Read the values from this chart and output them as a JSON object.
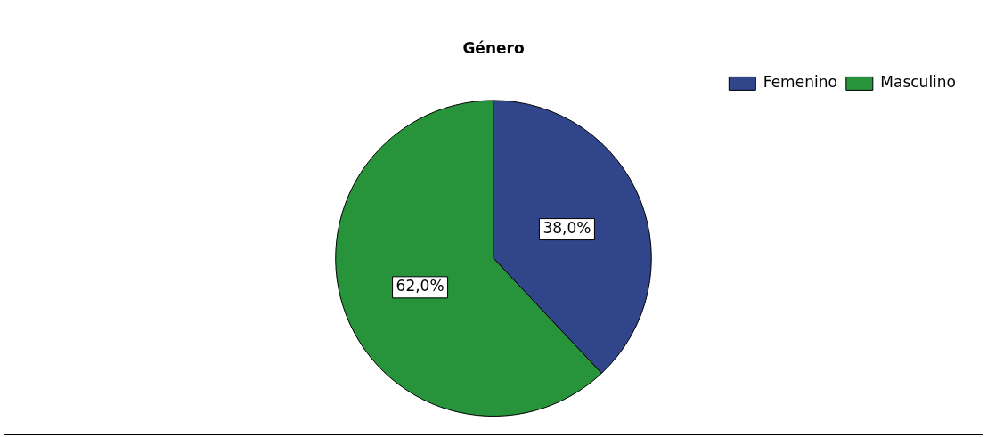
{
  "chart_data": {
    "type": "pie",
    "title": "Género",
    "categories": [
      "Femenino",
      "Masculino"
    ],
    "values": [
      38.0,
      62.0
    ],
    "colors": [
      "#31468a",
      "#27933a"
    ],
    "value_labels": [
      "38,0%",
      "62,0%"
    ],
    "legend": "top right"
  }
}
